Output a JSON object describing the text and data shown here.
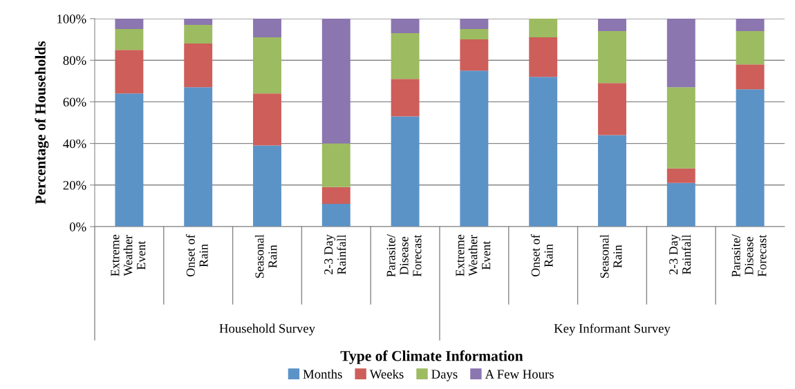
{
  "chart_data": {
    "type": "bar",
    "stacked": true,
    "xlabel": "Type of Climate Information",
    "ylabel": "Percentage of Households",
    "categories": [
      "Extreme\nWeather\nEvent",
      "Onset of\nRain",
      "Seasonal\nRain",
      "2-3 Day\nRainfall",
      "Parasite/\nDisease\nForecast",
      "Extreme\nWeather\nEvent",
      "Onset of\nRain",
      "Seasonal\nRain",
      "2-3 Day\nRainfall",
      "Parasite/\nDisease\nForecast"
    ],
    "annotations": [
      "Household Survey",
      "Key Informant Survey"
    ],
    "series": [
      {
        "name": "Months",
        "color": "#5b93c7",
        "values": [
          64,
          67,
          39,
          11,
          53,
          75,
          72,
          44,
          21,
          66
        ]
      },
      {
        "name": "Weeks",
        "color": "#cd5e5a",
        "values": [
          21,
          21,
          25,
          8,
          18,
          15,
          19,
          25,
          7,
          12
        ]
      },
      {
        "name": "Days",
        "color": "#9dbb60",
        "values": [
          10,
          9,
          27,
          21,
          22,
          5,
          9,
          25,
          39,
          16
        ]
      },
      {
        "name": "A Few Hours",
        "color": "#8b76b0",
        "values": [
          5,
          3,
          9,
          60,
          7,
          5,
          0,
          6,
          33,
          6
        ]
      }
    ],
    "ylim": [
      0,
      100
    ],
    "yticks": [
      {
        "value": 0,
        "label": "0%"
      },
      {
        "value": 20,
        "label": "20%"
      },
      {
        "value": 40,
        "label": "40%"
      },
      {
        "value": 60,
        "label": "60%"
      },
      {
        "value": 80,
        "label": "80%"
      },
      {
        "value": 100,
        "label": "100%"
      }
    ],
    "grid": "y",
    "legend": "bottom"
  }
}
